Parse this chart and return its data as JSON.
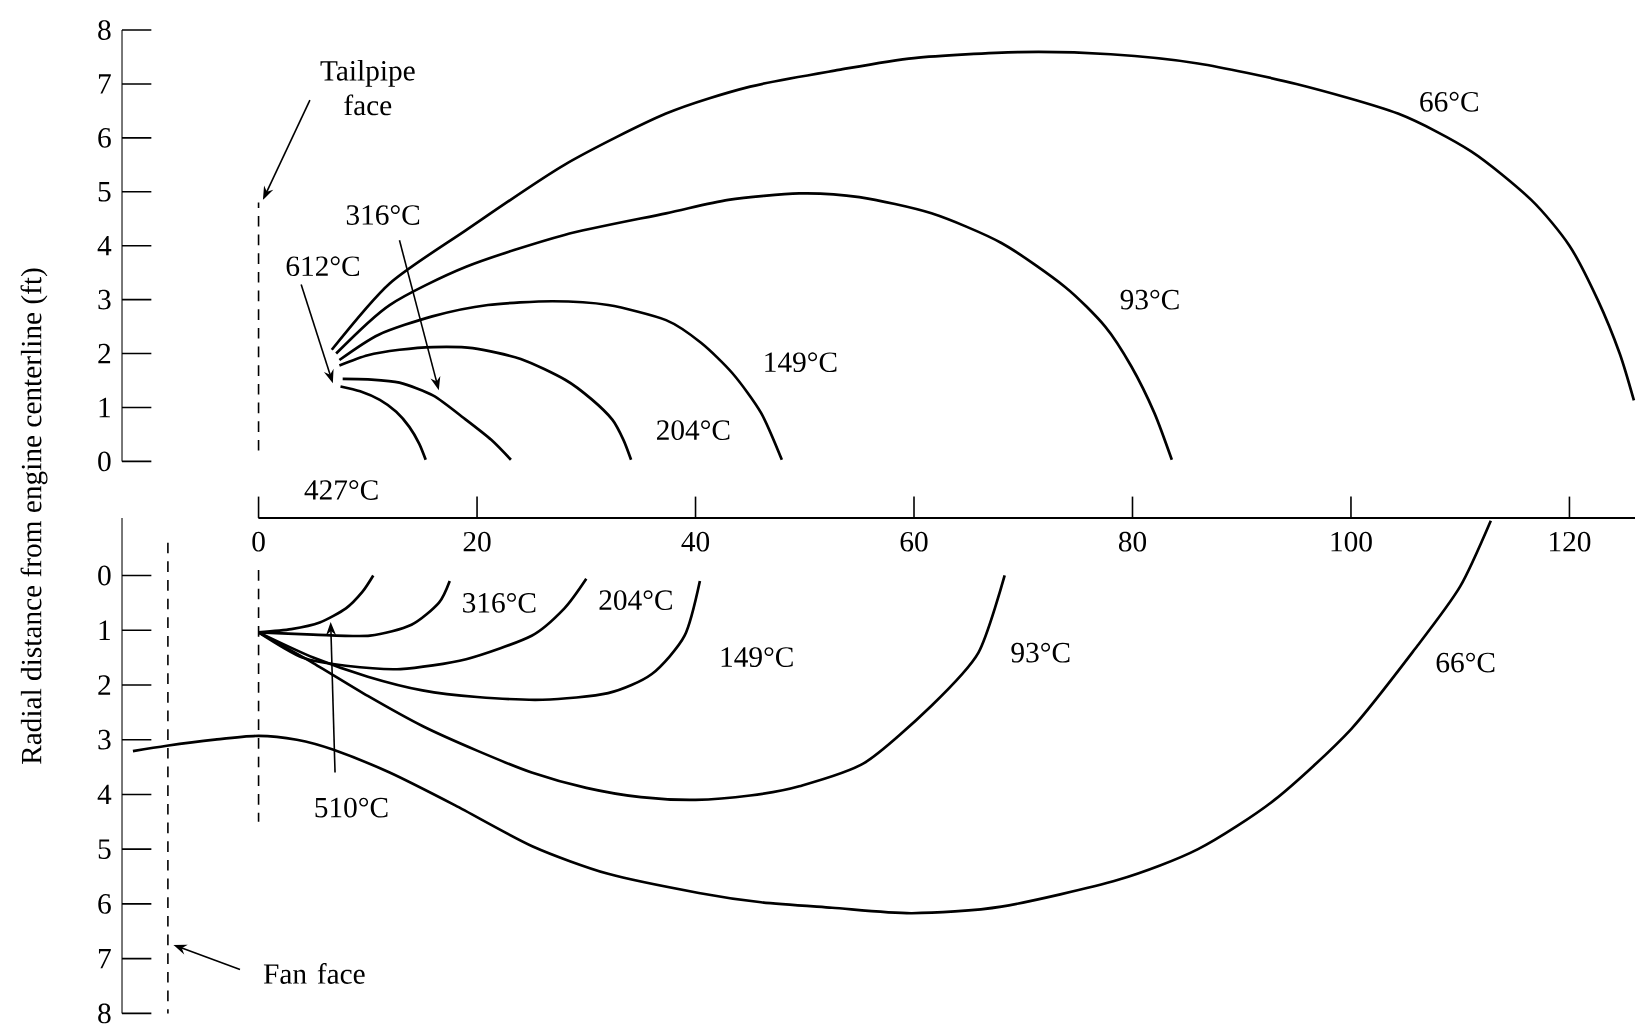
{
  "chart_data": [
    {
      "type": "line",
      "ylabel": "Radial distance from engine centerline (ft)",
      "xlim": [
        -12.5,
        126
      ],
      "ylim": [
        0,
        8
      ],
      "xticks": [
        0,
        20,
        40,
        60,
        80,
        100,
        120
      ],
      "yticks": [
        0,
        1,
        2,
        3,
        4,
        5,
        6,
        7,
        8
      ],
      "ref_lines": [
        {
          "axis": "x",
          "value": 0,
          "label": "Tailpipe face",
          "line_style": "dashed"
        }
      ],
      "annotations": [
        {
          "text": "612°C",
          "x": 6.8,
          "y": 1.45
        }
      ],
      "series": [
        {
          "name": "66°C",
          "color": "#000000",
          "x": [
            6.7,
            12,
            19,
            28,
            37.3,
            45,
            53.1,
            60,
            69.6,
            78,
            86,
            95,
            104.3,
            111,
            116.5,
            120,
            122.6,
            124.6,
            125.9
          ],
          "values": [
            2.07,
            3.3,
            4.29,
            5.5,
            6.45,
            6.95,
            7.26,
            7.48,
            7.59,
            7.55,
            7.38,
            7.0,
            6.45,
            5.75,
            4.85,
            4.0,
            2.99,
            2.0,
            1.13
          ]
        },
        {
          "name": "93°C",
          "color": "#000000",
          "x": [
            7.1,
            12,
            19,
            28,
            37.3,
            43,
            49.5,
            55,
            61.6,
            68,
            73.8,
            77.5,
            79.9,
            82,
            83.6
          ],
          "values": [
            2.0,
            2.9,
            3.61,
            4.2,
            4.6,
            4.85,
            4.97,
            4.9,
            4.6,
            4.05,
            3.24,
            2.5,
            1.76,
            0.9,
            0.03
          ]
        },
        {
          "name": "149°C",
          "color": "#000000",
          "x": [
            7.4,
            11,
            15.9,
            21,
            26.9,
            32,
            37.3,
            40.5,
            43.4,
            46,
            47.9
          ],
          "values": [
            1.88,
            2.35,
            2.69,
            2.9,
            2.97,
            2.9,
            2.62,
            2.2,
            1.63,
            0.9,
            0.03
          ]
        },
        {
          "name": "204°C",
          "color": "#000000",
          "x": [
            7.4,
            10,
            12.9,
            16,
            19.6,
            24,
            28.1,
            30.5,
            32.4,
            33.4,
            34.1
          ],
          "values": [
            1.78,
            1.97,
            2.07,
            2.12,
            2.1,
            1.9,
            1.51,
            1.15,
            0.77,
            0.4,
            0.03
          ]
        },
        {
          "name": "316°C",
          "color": "#000000",
          "x": [
            7.7,
            10,
            12.9,
            16,
            19,
            21.3,
            23.1
          ],
          "values": [
            1.53,
            1.52,
            1.46,
            1.22,
            0.77,
            0.4,
            0.03
          ]
        },
        {
          "name": "427°C",
          "color": "#000000",
          "x": [
            7.5,
            9.3,
            11.1,
            12.6,
            13.8,
            14.7,
            15.3
          ],
          "values": [
            1.39,
            1.3,
            1.14,
            0.92,
            0.64,
            0.33,
            0.03
          ]
        }
      ]
    },
    {
      "type": "line",
      "xlim": [
        -12.5,
        126
      ],
      "ylim": [
        8,
        -1.05
      ],
      "yticks": [
        0,
        1,
        2,
        3,
        4,
        5,
        6,
        7,
        8
      ],
      "tick_labels": "y",
      "ref_lines": [
        {
          "axis": "x",
          "value": 0,
          "line_style": "dashed"
        },
        {
          "axis": "x",
          "value": -8.3,
          "label": "Fan face",
          "line_style": "dashed"
        }
      ],
      "series": [
        {
          "name": "510°C",
          "color": "#000000",
          "x": [
            0,
            3,
            5.6,
            8,
            9.5,
            10.5
          ],
          "values": [
            1.04,
            0.98,
            0.86,
            0.6,
            0.3,
            0
          ]
        },
        {
          "name": "316°C",
          "color": "#000000",
          "x": [
            0,
            5,
            10.2,
            14,
            16.5,
            17.5
          ],
          "values": [
            1.04,
            1.08,
            1.1,
            0.9,
            0.5,
            0.1
          ]
        },
        {
          "name": "204°C",
          "color": "#000000",
          "x": [
            0,
            4,
            8,
            13,
            19,
            25,
            28,
            30
          ],
          "values": [
            1.04,
            1.5,
            1.65,
            1.71,
            1.53,
            1.1,
            0.6,
            0.06
          ]
        },
        {
          "name": "149°C",
          "color": "#000000",
          "x": [
            0,
            5,
            10,
            15,
            20,
            26,
            32,
            36,
            39,
            40.4
          ],
          "values": [
            1.04,
            1.5,
            1.85,
            2.1,
            2.22,
            2.27,
            2.15,
            1.8,
            1.1,
            0.1
          ]
        },
        {
          "name": "93°C",
          "color": "#000000",
          "x": [
            0,
            5,
            10,
            15,
            20,
            25,
            30,
            35,
            40,
            45,
            49.5,
            55.5,
            61.6,
            65.9,
            68.3
          ],
          "values": [
            1.04,
            1.6,
            2.2,
            2.75,
            3.2,
            3.6,
            3.88,
            4.05,
            4.1,
            4.02,
            3.85,
            3.42,
            2.38,
            1.41,
            0
          ]
        },
        {
          "name": "66°C",
          "color": "#000000",
          "x": [
            -11.5,
            -8.4,
            -4,
            0,
            3.5,
            6.8,
            12,
            18,
            25.1,
            32,
            40.3,
            46,
            52.5,
            59.8,
            68,
            78.7,
            86,
            93,
            100,
            106.1,
            110,
            112.8
          ],
          "values": [
            3.21,
            3.11,
            3.0,
            2.93,
            3.0,
            3.18,
            3.6,
            4.2,
            4.95,
            5.45,
            5.8,
            5.97,
            6.07,
            6.17,
            6.05,
            5.56,
            5.0,
            4.1,
            2.81,
            1.28,
            0.2,
            -1.0
          ]
        }
      ]
    }
  ]
}
